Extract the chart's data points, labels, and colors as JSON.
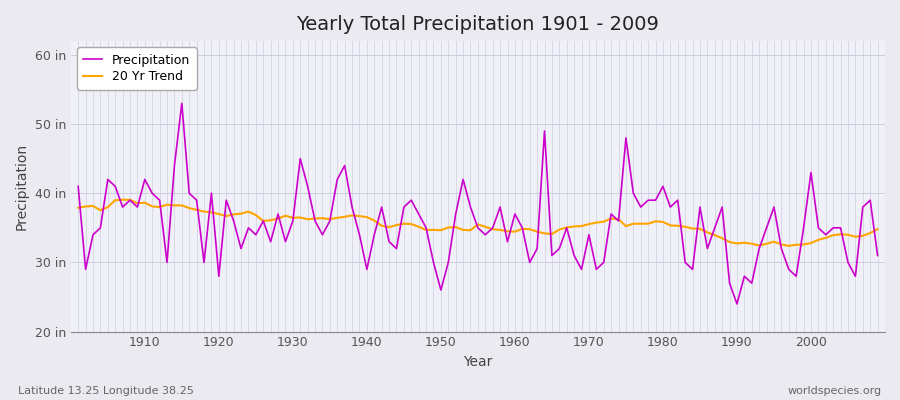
{
  "title": "Yearly Total Precipitation 1901 - 2009",
  "xlabel": "Year",
  "ylabel": "Precipitation",
  "subtitle": "Latitude 13.25 Longitude 38.25",
  "watermark": "worldspecies.org",
  "line_color": "#CC00CC",
  "trend_color": "#FFA500",
  "bg_color": "#EAEAF0",
  "plot_bg_color": "#F0F0F8",
  "grid_color": "#C8C8D8",
  "ylim": [
    20,
    62
  ],
  "yticks": [
    20,
    30,
    40,
    50,
    60
  ],
  "ytick_labels": [
    "20 in",
    "30 in",
    "40 in",
    "50 in",
    "60 in"
  ],
  "years": [
    1901,
    1902,
    1903,
    1904,
    1905,
    1906,
    1907,
    1908,
    1909,
    1910,
    1911,
    1912,
    1913,
    1914,
    1915,
    1916,
    1917,
    1918,
    1919,
    1920,
    1921,
    1922,
    1923,
    1924,
    1925,
    1926,
    1927,
    1928,
    1929,
    1930,
    1931,
    1932,
    1933,
    1934,
    1935,
    1936,
    1937,
    1938,
    1939,
    1940,
    1941,
    1942,
    1943,
    1944,
    1945,
    1946,
    1947,
    1948,
    1949,
    1950,
    1951,
    1952,
    1953,
    1954,
    1955,
    1956,
    1957,
    1958,
    1959,
    1960,
    1961,
    1962,
    1963,
    1964,
    1965,
    1966,
    1967,
    1968,
    1969,
    1970,
    1971,
    1972,
    1973,
    1974,
    1975,
    1976,
    1977,
    1978,
    1979,
    1980,
    1981,
    1982,
    1983,
    1984,
    1985,
    1986,
    1987,
    1988,
    1989,
    1990,
    1991,
    1992,
    1993,
    1994,
    1995,
    1996,
    1997,
    1998,
    1999,
    2000,
    2001,
    2002,
    2003,
    2004,
    2005,
    2006,
    2007,
    2008,
    2009
  ],
  "precip": [
    41,
    29,
    34,
    35,
    42,
    41,
    38,
    39,
    38,
    42,
    40,
    39,
    30,
    44,
    53,
    40,
    39,
    30,
    40,
    28,
    39,
    36,
    32,
    35,
    34,
    36,
    33,
    37,
    33,
    36,
    45,
    41,
    36,
    34,
    36,
    42,
    44,
    38,
    34,
    29,
    34,
    38,
    33,
    32,
    38,
    39,
    37,
    35,
    30,
    26,
    30,
    37,
    42,
    38,
    35,
    34,
    35,
    38,
    33,
    37,
    35,
    30,
    32,
    49,
    31,
    32,
    35,
    31,
    29,
    34,
    29,
    30,
    37,
    36,
    48,
    40,
    38,
    39,
    39,
    41,
    38,
    39,
    30,
    29,
    38,
    32,
    35,
    38,
    27,
    24,
    28,
    27,
    32,
    35,
    38,
    32,
    29,
    28,
    35,
    43,
    35,
    34,
    35,
    35,
    30,
    28,
    38,
    39,
    31
  ],
  "legend_entries": [
    "Precipitation",
    "20 Yr Trend"
  ],
  "legend_colors": [
    "#CC00CC",
    "#FFA500"
  ],
  "figsize": [
    9.0,
    4.0
  ],
  "dpi": 100
}
